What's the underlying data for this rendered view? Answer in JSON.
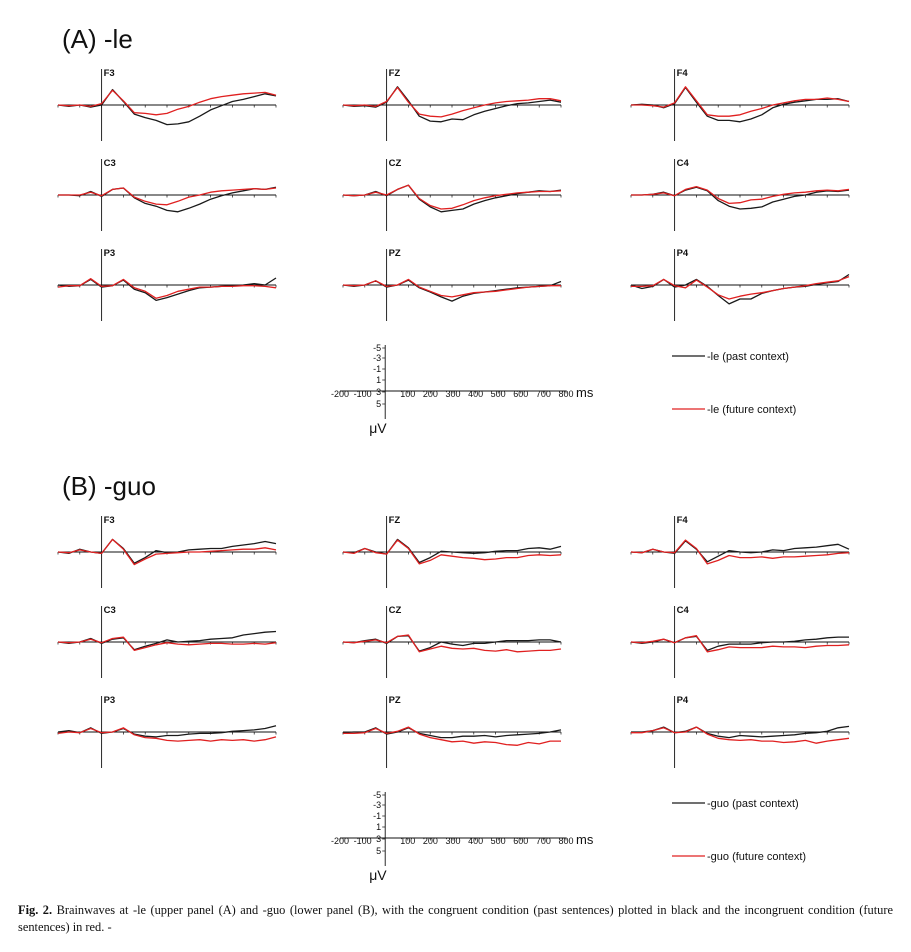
{
  "figure": {
    "caption": {
      "label": "Fig. 2.",
      "text": "Brainwaves at -le (upper panel (A) and -guo (lower panel (B), with the congruent condition (past sentences) plotted in black and the incongruent condition (future sentences) in red. -"
    },
    "colors": {
      "past": "#1a1a1a",
      "future": "#e02020"
    }
  },
  "chart_data": [
    {
      "type": "line",
      "title": "(A) -le",
      "electrodes": [
        "F3",
        "FZ",
        "F4",
        "C3",
        "CZ",
        "C4",
        "P3",
        "PZ",
        "P4"
      ],
      "time_ms": [
        -200,
        -150,
        -100,
        -50,
        0,
        50,
        100,
        150,
        200,
        250,
        300,
        350,
        400,
        450,
        500,
        550,
        600,
        650,
        700,
        750,
        800
      ],
      "y_unit": "μV",
      "y_axis_inverted": true,
      "ylim": [
        -5,
        5
      ],
      "scale_ticks": [
        "-5",
        "-3",
        "-1",
        "1",
        "3",
        "5"
      ],
      "x_ticks": [
        "-200",
        "-100",
        "100",
        "200",
        "300",
        "400",
        "500",
        "600",
        "700",
        "800"
      ],
      "x_unit": "ms",
      "legend": {
        "past": "-le (past context)",
        "future": "-le (future context)"
      },
      "series": [
        {
          "electrode": "F3",
          "condition": "past",
          "values": [
            0,
            0.2,
            0,
            0.3,
            0,
            -2.2,
            -0.5,
            1.3,
            1.8,
            2.2,
            2.8,
            2.7,
            2.4,
            1.6,
            0.7,
            0.1,
            -0.5,
            -0.8,
            -1.2,
            -1.6,
            -1.3
          ]
        },
        {
          "electrode": "F3",
          "condition": "future",
          "values": [
            0,
            0.1,
            0,
            0.2,
            -0.2,
            -2.1,
            -0.6,
            1.1,
            1.2,
            1.4,
            1.2,
            0.6,
            0.2,
            -0.4,
            -0.9,
            -1.2,
            -1.4,
            -1.6,
            -1.7,
            -1.8,
            -1.4
          ]
        },
        {
          "electrode": "FZ",
          "condition": "past",
          "values": [
            0,
            0.2,
            0.1,
            0.3,
            -0.4,
            -2.6,
            -0.6,
            1.6,
            2.3,
            2.4,
            2.0,
            2.1,
            1.4,
            0.9,
            0.5,
            0.1,
            -0.2,
            -0.3,
            -0.5,
            -0.7,
            -0.4
          ]
        },
        {
          "electrode": "FZ",
          "condition": "future",
          "values": [
            0,
            0.1,
            0,
            0.2,
            -0.5,
            -2.5,
            -0.4,
            1.3,
            1.6,
            1.7,
            1.3,
            0.8,
            0.4,
            0,
            -0.3,
            -0.5,
            -0.6,
            -0.7,
            -0.9,
            -0.9,
            -0.6
          ]
        },
        {
          "electrode": "F4",
          "condition": "past",
          "values": [
            0,
            -0.1,
            0,
            0.4,
            -0.2,
            -2.5,
            -0.4,
            1.6,
            2.2,
            2.2,
            2.4,
            2.0,
            1.4,
            0.4,
            -0.1,
            -0.4,
            -0.6,
            -0.8,
            -0.8,
            -0.9,
            -0.5
          ]
        },
        {
          "electrode": "F4",
          "condition": "future",
          "values": [
            0,
            0,
            0.1,
            0.3,
            -0.3,
            -2.6,
            -0.6,
            1.4,
            1.6,
            1.6,
            1.4,
            0.9,
            0.5,
            0,
            -0.3,
            -0.6,
            -0.8,
            -0.8,
            -1.0,
            -0.8,
            -0.5
          ]
        },
        {
          "electrode": "C3",
          "condition": "past",
          "values": [
            0,
            0,
            0.1,
            -0.5,
            0.2,
            -0.8,
            -1.0,
            0.4,
            1.2,
            1.6,
            2.2,
            2.4,
            1.9,
            1.3,
            0.6,
            0.1,
            -0.3,
            -0.6,
            -0.9,
            -0.8,
            -1.1
          ]
        },
        {
          "electrode": "C3",
          "condition": "future",
          "values": [
            0,
            0,
            0,
            -0.4,
            0.1,
            -0.8,
            -1.0,
            0.3,
            0.9,
            1.3,
            1.4,
            0.9,
            0.3,
            0,
            -0.4,
            -0.6,
            -0.7,
            -0.8,
            -0.9,
            -0.8,
            -1.0
          ]
        },
        {
          "electrode": "CZ",
          "condition": "past",
          "values": [
            0,
            0.1,
            0,
            -0.5,
            0.1,
            -0.8,
            -1.4,
            0.6,
            1.7,
            2.4,
            2.2,
            2.0,
            1.3,
            0.8,
            0.4,
            0.1,
            -0.2,
            -0.4,
            -0.6,
            -0.5,
            -0.7
          ]
        },
        {
          "electrode": "CZ",
          "condition": "future",
          "values": [
            0,
            0.1,
            0,
            -0.4,
            0,
            -0.8,
            -1.4,
            0.5,
            1.5,
            2.0,
            1.9,
            1.4,
            0.8,
            0.4,
            0.1,
            -0.1,
            -0.3,
            -0.4,
            -0.5,
            -0.5,
            -0.6
          ]
        },
        {
          "electrode": "C4",
          "condition": "past",
          "values": [
            0,
            0,
            -0.1,
            -0.4,
            0.1,
            -0.7,
            -1.1,
            -0.6,
            0.8,
            1.6,
            2.0,
            1.9,
            1.7,
            1.0,
            0.6,
            0.2,
            0,
            -0.4,
            -0.6,
            -0.5,
            -0.7
          ]
        },
        {
          "electrode": "C4",
          "condition": "future",
          "values": [
            0,
            0,
            -0.1,
            -0.3,
            0.1,
            -0.8,
            -1.2,
            -0.7,
            0.5,
            1.2,
            1.1,
            0.7,
            0.6,
            0.2,
            -0.1,
            -0.3,
            -0.4,
            -0.6,
            -0.7,
            -0.6,
            -0.8
          ]
        },
        {
          "electrode": "P3",
          "condition": "past",
          "values": [
            0,
            0.2,
            0.1,
            -0.8,
            0.3,
            0.1,
            -0.7,
            0.6,
            1.1,
            2.2,
            1.8,
            1.3,
            0.8,
            0.4,
            0.3,
            0.2,
            0.1,
            0,
            -0.2,
            0,
            -1.0
          ]
        },
        {
          "electrode": "P3",
          "condition": "future",
          "values": [
            0.3,
            0.1,
            0.1,
            -0.9,
            0.2,
            0.1,
            -0.8,
            0.4,
            0.9,
            1.9,
            1.5,
            0.9,
            0.6,
            0.3,
            0.3,
            0.2,
            0.2,
            0.1,
            0.1,
            0.2,
            0.4
          ]
        },
        {
          "electrode": "PZ",
          "condition": "past",
          "values": [
            0,
            0.2,
            0,
            -0.6,
            0.3,
            0,
            -0.7,
            0.4,
            1.0,
            1.7,
            2.3,
            1.6,
            1.2,
            1.0,
            0.8,
            0.6,
            0.4,
            0.3,
            0.2,
            0.1,
            -0.5
          ]
        },
        {
          "electrode": "PZ",
          "condition": "future",
          "values": [
            0,
            0.1,
            0,
            -0.6,
            0.2,
            0,
            -0.8,
            0.3,
            0.9,
            1.5,
            1.7,
            1.4,
            1.1,
            1.0,
            0.9,
            0.7,
            0.5,
            0.3,
            0.2,
            0.1,
            0.1
          ]
        },
        {
          "electrode": "P4",
          "condition": "past",
          "values": [
            0,
            0.5,
            0.2,
            -0.8,
            0.3,
            0,
            -0.8,
            0.2,
            1.5,
            2.7,
            2.0,
            2.0,
            1.2,
            0.8,
            0.5,
            0.3,
            0.2,
            -0.1,
            -0.3,
            -0.5,
            -1.5
          ]
        },
        {
          "electrode": "P4",
          "condition": "future",
          "values": [
            0.2,
            0.2,
            0.1,
            -0.8,
            0.1,
            0.4,
            -0.7,
            0.3,
            1.4,
            2.0,
            1.6,
            1.3,
            1.1,
            0.8,
            0.5,
            0.3,
            0.1,
            -0.2,
            -0.4,
            -0.6,
            -1.2
          ]
        }
      ]
    },
    {
      "type": "line",
      "title": "(B) -guo",
      "electrodes": [
        "F3",
        "FZ",
        "F4",
        "C3",
        "CZ",
        "C4",
        "P3",
        "PZ",
        "P4"
      ],
      "time_ms": [
        -200,
        -150,
        -100,
        -50,
        0,
        50,
        100,
        150,
        200,
        250,
        300,
        350,
        400,
        450,
        500,
        550,
        600,
        650,
        700,
        750,
        800
      ],
      "y_unit": "μV",
      "y_axis_inverted": true,
      "ylim": [
        -5,
        5
      ],
      "scale_ticks": [
        "-5",
        "-3",
        "-1",
        "1",
        "3",
        "5"
      ],
      "x_ticks": [
        "-200",
        "-100",
        "100",
        "200",
        "300",
        "400",
        "500",
        "600",
        "700",
        "800"
      ],
      "x_unit": "ms",
      "legend": {
        "past": "-guo (past context)",
        "future": "-guo (future context)"
      },
      "series": [
        {
          "electrode": "F3",
          "condition": "past",
          "values": [
            0,
            0.2,
            -0.4,
            0,
            0.2,
            -1.8,
            -0.5,
            1.6,
            0.8,
            -0.2,
            0.1,
            0,
            -0.3,
            -0.4,
            -0.5,
            -0.5,
            -0.8,
            -1.0,
            -1.2,
            -1.5,
            -1.2
          ]
        },
        {
          "electrode": "F3",
          "condition": "future",
          "values": [
            0,
            0.1,
            -0.3,
            0,
            0.2,
            -1.8,
            -0.4,
            1.8,
            1.0,
            0.3,
            0.2,
            0.1,
            0,
            0,
            -0.1,
            -0.2,
            -0.3,
            -0.4,
            -0.4,
            -0.6,
            -0.3
          ]
        },
        {
          "electrode": "FZ",
          "condition": "past",
          "values": [
            0,
            0.1,
            -0.5,
            0,
            0.3,
            -1.8,
            -0.6,
            1.5,
            0.8,
            -0.1,
            0,
            0.1,
            0.2,
            0.1,
            -0.1,
            -0.2,
            -0.2,
            -0.5,
            -0.6,
            -0.4,
            -0.8
          ]
        },
        {
          "electrode": "FZ",
          "condition": "future",
          "values": [
            0,
            0.2,
            -0.5,
            0.1,
            0.3,
            -1.7,
            -0.5,
            1.7,
            1.2,
            0.4,
            0.6,
            0.8,
            0.9,
            1.1,
            1.0,
            0.8,
            0.8,
            0.5,
            0.4,
            0.5,
            0.4
          ]
        },
        {
          "electrode": "F4",
          "condition": "past",
          "values": [
            0,
            0.1,
            -0.4,
            0,
            0.2,
            -1.6,
            -0.4,
            1.4,
            0.6,
            -0.2,
            0,
            0.1,
            0,
            -0.3,
            -0.2,
            -0.5,
            -0.6,
            -0.7,
            -0.9,
            -1.1,
            -0.4
          ]
        },
        {
          "electrode": "F4",
          "condition": "future",
          "values": [
            0,
            0.1,
            -0.4,
            0,
            0.1,
            -1.7,
            -0.5,
            1.7,
            1.2,
            0.5,
            0.8,
            0.8,
            0.7,
            0.9,
            0.7,
            0.7,
            0.6,
            0.5,
            0.4,
            0.2,
            0.1
          ]
        },
        {
          "electrode": "C3",
          "condition": "past",
          "values": [
            0,
            0.2,
            0,
            -0.5,
            0.2,
            -0.4,
            -0.6,
            1.1,
            0.6,
            0.2,
            -0.3,
            0,
            -0.1,
            -0.2,
            -0.4,
            -0.5,
            -0.6,
            -1.0,
            -1.2,
            -1.4,
            -1.5
          ]
        },
        {
          "electrode": "C3",
          "condition": "future",
          "values": [
            0,
            0.1,
            0,
            -0.4,
            0.1,
            -0.5,
            -0.7,
            1.2,
            0.8,
            0.4,
            0.1,
            0.3,
            0.4,
            0.3,
            0.2,
            0.2,
            0.3,
            0.3,
            0.2,
            0.3,
            0.1
          ]
        },
        {
          "electrode": "CZ",
          "condition": "past",
          "values": [
            0,
            0.1,
            -0.2,
            -0.4,
            0.2,
            -0.8,
            -0.9,
            1.3,
            0.8,
            0,
            0.3,
            0.5,
            0.2,
            0.2,
            0,
            -0.2,
            -0.2,
            -0.2,
            -0.3,
            -0.3,
            0
          ]
        },
        {
          "electrode": "CZ",
          "condition": "future",
          "values": [
            0,
            0.1,
            -0.1,
            -0.3,
            0.1,
            -0.8,
            -1.0,
            1.4,
            1.0,
            0.6,
            0.9,
            1.0,
            0.9,
            1.2,
            1.3,
            1.1,
            1.4,
            1.3,
            1.2,
            1.2,
            1.0
          ]
        },
        {
          "electrode": "C4",
          "condition": "past",
          "values": [
            0,
            0.2,
            0,
            -0.4,
            0.1,
            -0.6,
            -0.8,
            1.2,
            0.6,
            0.3,
            0.3,
            0.3,
            0.1,
            0,
            0,
            -0.1,
            -0.3,
            -0.4,
            -0.6,
            -0.7,
            -0.7
          ]
        },
        {
          "electrode": "C4",
          "condition": "future",
          "values": [
            0,
            0.1,
            -0.1,
            -0.4,
            0.1,
            -0.6,
            -0.9,
            1.4,
            1.1,
            0.7,
            0.8,
            0.8,
            0.8,
            0.6,
            0.7,
            0.7,
            0.8,
            0.6,
            0.5,
            0.5,
            0.4
          ]
        },
        {
          "electrode": "P3",
          "condition": "past",
          "values": [
            0,
            -0.2,
            0.1,
            -0.6,
            0.2,
            0,
            -0.5,
            0.3,
            0.6,
            0.7,
            0.5,
            0.5,
            0.3,
            0.2,
            0.2,
            0.1,
            -0.1,
            -0.2,
            -0.3,
            -0.5,
            -0.9
          ]
        },
        {
          "electrode": "P3",
          "condition": "future",
          "values": [
            0.2,
            0,
            0.1,
            -0.5,
            0.1,
            0,
            -0.6,
            0.4,
            0.8,
            0.9,
            1.2,
            1.3,
            1.2,
            1.1,
            1.3,
            1.1,
            1.2,
            1.1,
            1.3,
            1.1,
            0.7
          ]
        },
        {
          "electrode": "PZ",
          "condition": "past",
          "values": [
            0.1,
            0,
            0,
            -0.6,
            0.3,
            0,
            -0.6,
            0.2,
            0.5,
            0.8,
            0.8,
            0.6,
            0.6,
            0.5,
            0.7,
            0.5,
            0.4,
            0.3,
            0.2,
            0,
            -0.3
          ]
        },
        {
          "electrode": "PZ",
          "condition": "future",
          "values": [
            0.2,
            0.2,
            0.1,
            -0.5,
            0.2,
            -0.1,
            -0.7,
            0.3,
            0.8,
            1.1,
            1.4,
            1.3,
            1.6,
            1.4,
            1.5,
            1.8,
            1.9,
            1.5,
            1.7,
            1.3,
            1.3
          ]
        },
        {
          "electrode": "P4",
          "condition": "past",
          "values": [
            0,
            0,
            -0.2,
            -0.7,
            0.1,
            -0.1,
            -0.7,
            0.2,
            0.6,
            0.8,
            0.5,
            0.6,
            0.7,
            0.6,
            0.5,
            0.4,
            0.2,
            0.1,
            -0.1,
            -0.6,
            -0.8
          ]
        },
        {
          "electrode": "P4",
          "condition": "future",
          "values": [
            0.1,
            0.1,
            -0.2,
            -0.6,
            0.1,
            0,
            -0.7,
            0.3,
            0.9,
            1.1,
            1.2,
            1.1,
            1.3,
            1.3,
            1.5,
            1.4,
            1.2,
            1.6,
            1.3,
            1.1,
            0.9
          ]
        }
      ]
    }
  ]
}
